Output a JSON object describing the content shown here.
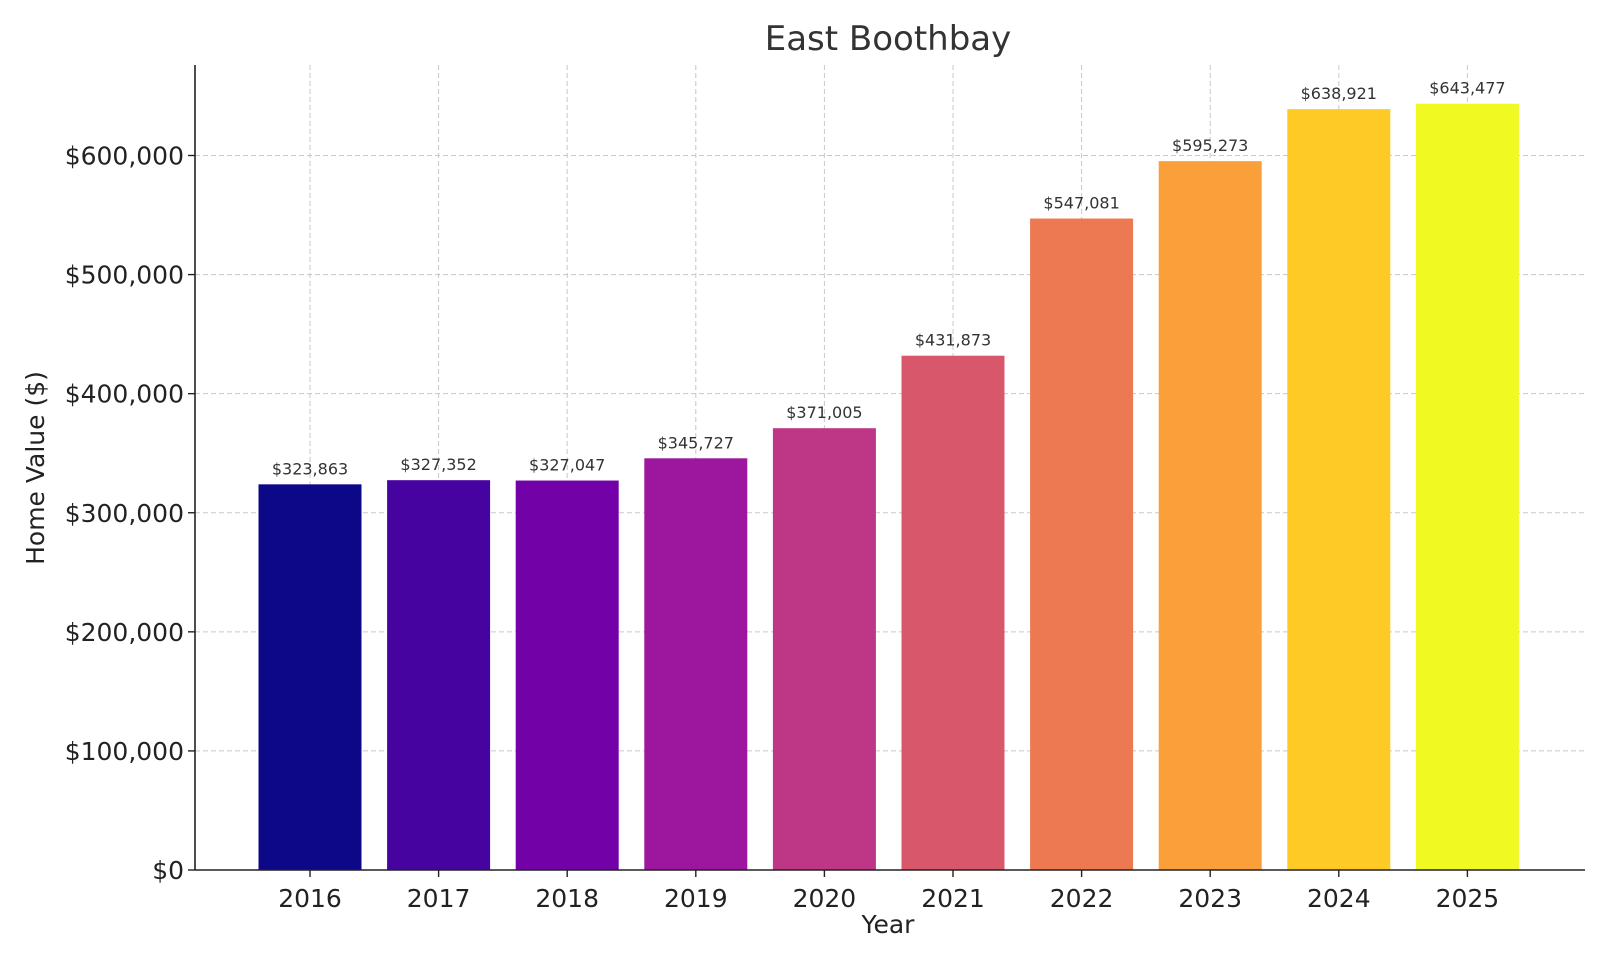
{
  "chart_data": {
    "type": "bar",
    "title": "East Boothbay",
    "xlabel": "Year",
    "ylabel": "Home Value ($)",
    "categories": [
      "2016",
      "2017",
      "2018",
      "2019",
      "2020",
      "2021",
      "2022",
      "2023",
      "2024",
      "2025"
    ],
    "values": [
      323863,
      327352,
      327047,
      345727,
      371005,
      431873,
      547081,
      595273,
      638921,
      643477
    ],
    "value_labels": [
      "$323,863",
      "$327,352",
      "$327,047",
      "$345,727",
      "$371,005",
      "$431,873",
      "$547,081",
      "$595,273",
      "$638,921",
      "$643,477"
    ],
    "bar_colors": [
      "#0d0887",
      "#46039f",
      "#7201a8",
      "#9c179e",
      "#bd3786",
      "#d8576b",
      "#ed7953",
      "#fb9f3a",
      "#fdca26",
      "#f0f921"
    ],
    "ylim": [
      0,
      676000
    ],
    "yticks": [
      0,
      100000,
      200000,
      300000,
      400000,
      500000,
      600000
    ],
    "ytick_labels": [
      "$0",
      "$100,000",
      "$200,000",
      "$300,000",
      "$400,000",
      "$500,000",
      "$600,000"
    ],
    "grid": true,
    "legend": "none"
  }
}
